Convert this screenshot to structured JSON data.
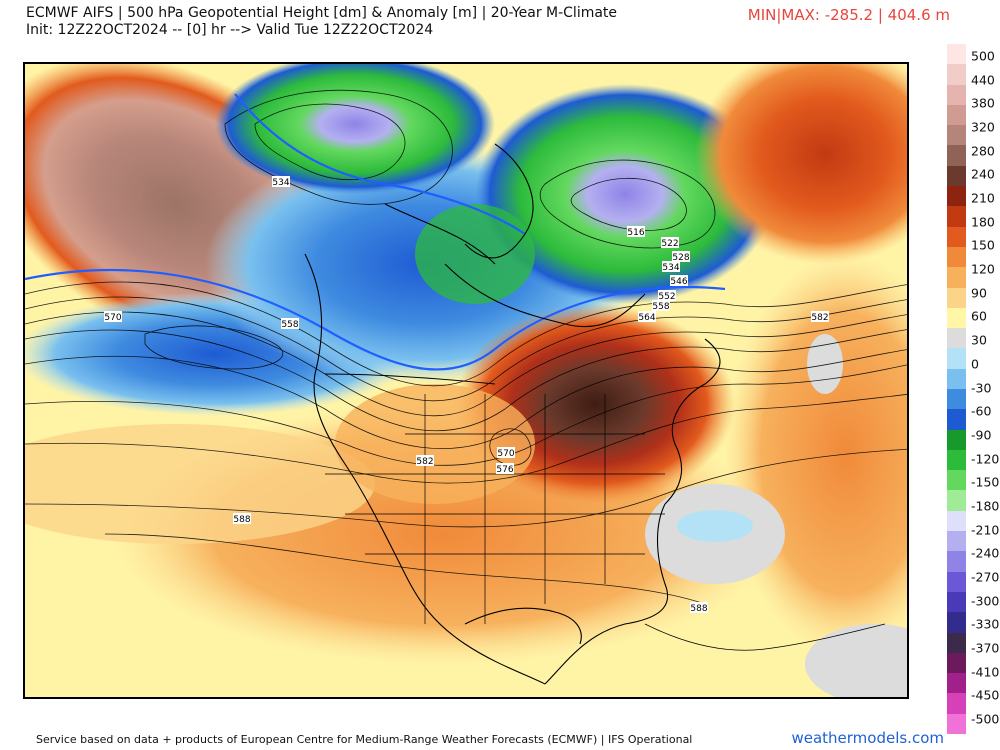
{
  "header": {
    "title_line1": "ECMWF AIFS | 500 hPa Geopotential Height [dm] & Anomaly [m] | 20-Year M-Climate",
    "title_line2": "Init: 12Z22OCT2024 -- [0] hr --> Valid Tue 12Z22OCT2024",
    "minmax": "MIN|MAX: -285.2 | 404.6 m"
  },
  "footer": {
    "credit": "Service based on data + products of European Centre for Medium-Range Weather Forecasts (ECMWF) | IFS Operational",
    "site": "weathermodels.com"
  },
  "colorbar": {
    "labels": [
      "500",
      "440",
      "380",
      "320",
      "280",
      "240",
      "210",
      "180",
      "150",
      "120",
      "90",
      "60",
      "30",
      "0",
      "-30",
      "-60",
      "-90",
      "-120",
      "-150",
      "-180",
      "-210",
      "-240",
      "-270",
      "-300",
      "-330",
      "-370",
      "-410",
      "-450",
      "-500"
    ],
    "colors": [
      "#fde6e4",
      "#f1cdc8",
      "#e5b4ae",
      "#cf9b92",
      "#b58579",
      "#8f6456",
      "#6a3a2c",
      "#8e2410",
      "#c23a12",
      "#e25a1d",
      "#f08a3a",
      "#f7b15d",
      "#fbd48a",
      "#fff6a8",
      "#dcdcdc",
      "#b3e2f6",
      "#79c0ee",
      "#3f8be0",
      "#1e5bd3",
      "#179a2b",
      "#2dbb3c",
      "#62d85e",
      "#a0ec96",
      "#dde0f8",
      "#b4b0f0",
      "#8f83e8",
      "#6b58d6",
      "#4a3ab8",
      "#322c8c",
      "#3b2a4a",
      "#6b1a5c",
      "#a1208a",
      "#d640b8",
      "#f072d6"
    ]
  },
  "map": {
    "contour_labels": [
      "534",
      "570",
      "558",
      "516",
      "522",
      "528",
      "534",
      "546",
      "552",
      "558",
      "564",
      "582",
      "570",
      "576",
      "582",
      "588",
      "588"
    ]
  }
}
